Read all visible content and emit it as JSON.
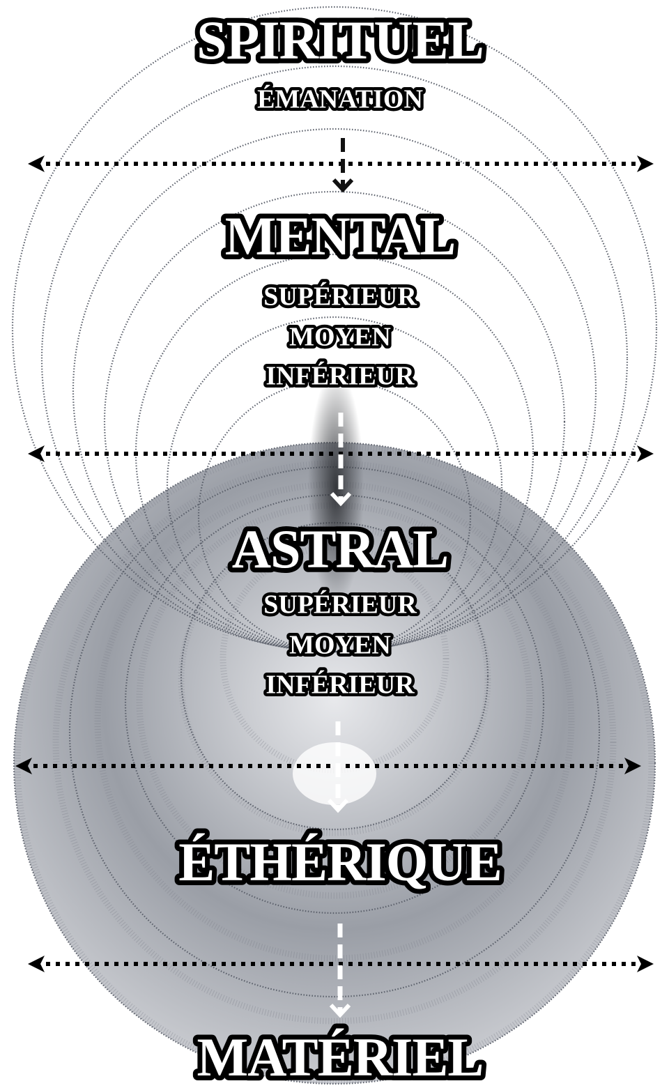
{
  "planes": [
    {
      "title": "SPIRITUEL",
      "sublevels": [
        "ÉMANATION"
      ]
    },
    {
      "title": "MENTAL",
      "sublevels": [
        "SUPÉRIEUR",
        "MOYEN",
        "INFÉRIEUR"
      ]
    },
    {
      "title": "ASTRAL",
      "sublevels": [
        "SUPÉRIEUR",
        "MOYEN",
        "INFÉRIEUR"
      ]
    },
    {
      "title": "ÉTHÉRIQUE",
      "sublevels": []
    },
    {
      "title": "MATÉRIEL",
      "sublevels": []
    }
  ]
}
